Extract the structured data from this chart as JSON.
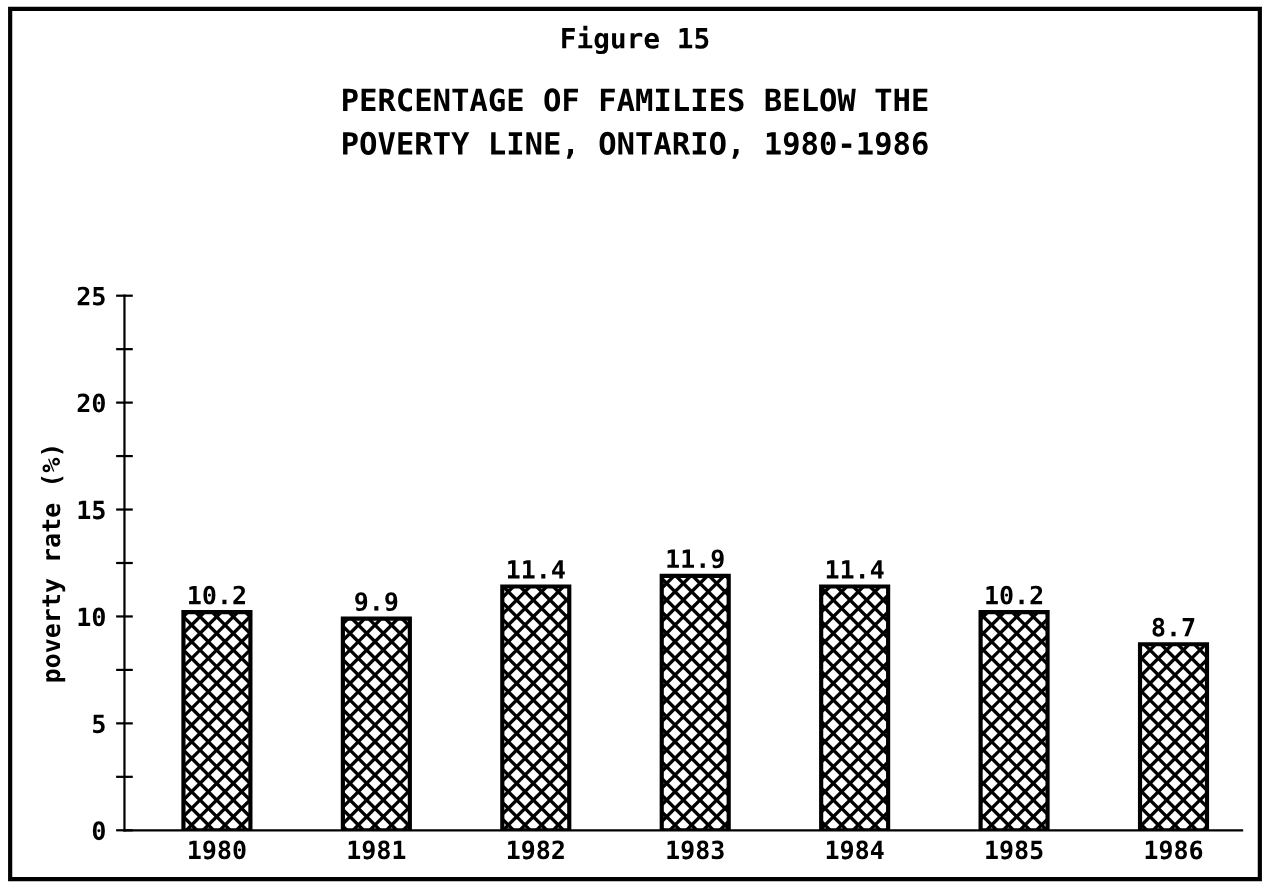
{
  "chart_data": {
    "type": "bar",
    "title": "Figure 15",
    "subtitle": "PERCENTAGE OF FAMILIES BELOW THE\nPOVERTY LINE, ONTARIO, 1980-1986",
    "ylabel": "poverty rate (%)",
    "categories": [
      "1980",
      "1981",
      "1982",
      "1983",
      "1984",
      "1985",
      "1986"
    ],
    "values": [
      10.2,
      9.9,
      11.4,
      11.9,
      11.4,
      10.2,
      8.7
    ],
    "color": "#000000",
    "data_labels": true,
    "ylim": [
      0,
      25
    ],
    "yticks": [
      0,
      {
        "value": 2.5,
        "label": null
      },
      5,
      {
        "value": 7.5,
        "label": null
      },
      10,
      {
        "value": 12.5,
        "label": null
      },
      15,
      {
        "value": 17.5,
        "label": null
      },
      20,
      {
        "value": 22.5,
        "label": null
      },
      25
    ],
    "grid": false
  }
}
